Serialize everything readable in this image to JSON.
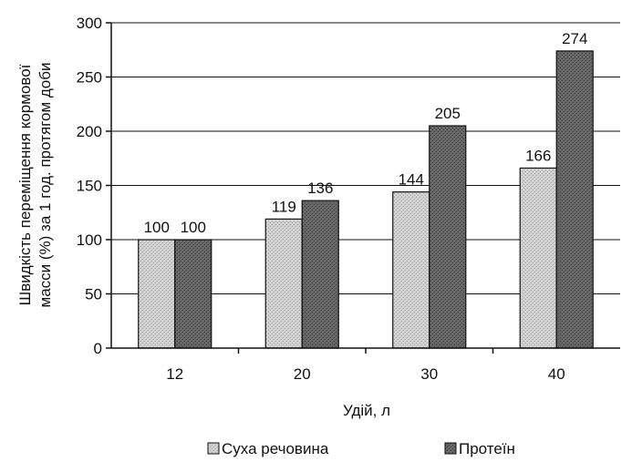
{
  "chart_data": {
    "type": "bar",
    "categories": [
      "12",
      "20",
      "30",
      "40"
    ],
    "series": [
      {
        "name": "Суха речовина",
        "values": [
          100,
          119,
          144,
          166
        ],
        "color": "#c8c8c8"
      },
      {
        "name": "Протеїн",
        "values": [
          100,
          136,
          205,
          274
        ],
        "color": "#5a5a5a"
      }
    ],
    "xlabel": "Удій, л",
    "ylabel_lines": [
      "Швидкість переміщення кормової",
      "масси (%) за 1 год. протягом доби"
    ],
    "ylim": [
      0,
      300
    ],
    "yticks": [
      0,
      50,
      100,
      150,
      200,
      250,
      300
    ],
    "grid": true,
    "legend_position": "bottom"
  }
}
